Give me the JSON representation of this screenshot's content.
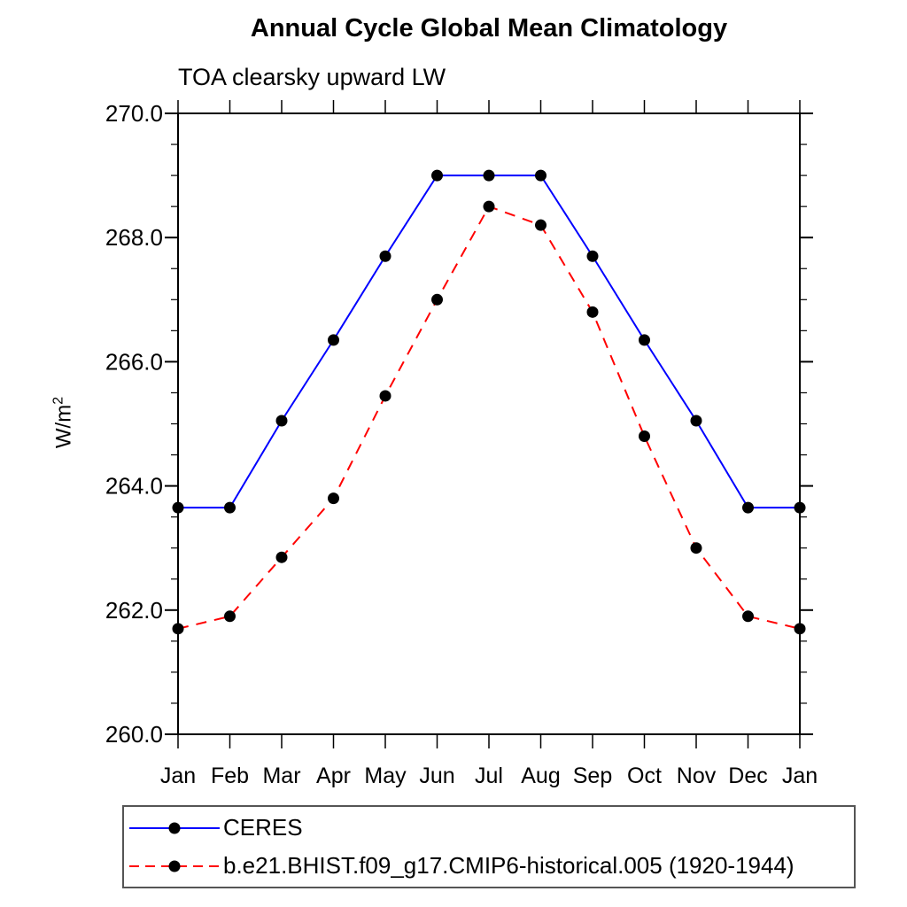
{
  "chart_data": {
    "type": "line",
    "title": "Annual Cycle Global Mean Climatology",
    "subtitle": "TOA clearsky upward LW",
    "ylabel": {
      "base": "W/m",
      "sup": "2",
      "full": "W/m²"
    },
    "categories": [
      "Jan",
      "Feb",
      "Mar",
      "Apr",
      "May",
      "Jun",
      "Jul",
      "Aug",
      "Sep",
      "Oct",
      "Nov",
      "Dec",
      "Jan"
    ],
    "ylim": [
      260.0,
      270.0
    ],
    "ytick_labels": [
      "260.0",
      "262.0",
      "264.0",
      "266.0",
      "268.0",
      "270.0"
    ],
    "ytick_major_step": 2.0,
    "ytick_minor_step": 0.5,
    "grid": false,
    "legend_position": "bottom-left-box",
    "marker": {
      "shape": "filled-circle",
      "color": "#000000",
      "radius": 6.5
    },
    "series": [
      {
        "name": "CERES",
        "color": "#0000ff",
        "style": "solid",
        "values": [
          263.65,
          263.65,
          265.05,
          266.35,
          267.7,
          269.0,
          269.0,
          269.0,
          267.7,
          266.35,
          265.05,
          263.65,
          263.65
        ]
      },
      {
        "name": "b.e21.BHIST.f09_g17.CMIP6-historical.005 (1920-1944)",
        "color": "#ff0000",
        "style": "dashed",
        "values": [
          261.7,
          261.9,
          262.85,
          263.8,
          265.45,
          267.0,
          268.5,
          268.2,
          266.8,
          264.8,
          263.0,
          261.9,
          261.7
        ]
      }
    ]
  }
}
